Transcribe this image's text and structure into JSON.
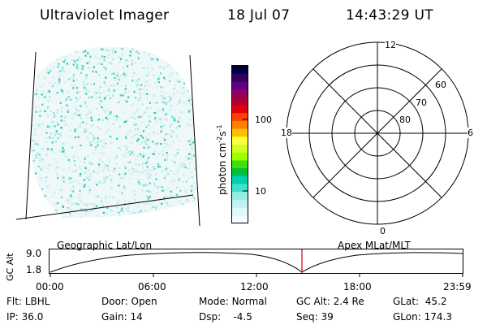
{
  "header": {
    "title": "Ultraviolet Imager",
    "date": "18 Jul 07",
    "time": "14:43:29 UT"
  },
  "colorbar": {
    "unit_label": "photon cm",
    "unit_exp1": "-2",
    "unit_mid": "s",
    "unit_exp2": "-1",
    "ticks": [
      "100",
      "10"
    ],
    "colors": [
      "#000040",
      "#300060",
      "#600080",
      "#900060",
      "#b00030",
      "#e00010",
      "#ff4000",
      "#ff8000",
      "#ffc000",
      "#ffff40",
      "#d0ff20",
      "#a0ff00",
      "#40e000",
      "#00c040",
      "#00d0b0",
      "#40e0d0",
      "#90f0e8",
      "#c0f0f0",
      "#e0f8f8",
      "#f4fcfc"
    ]
  },
  "polar": {
    "mlt_labels": {
      "top": "12",
      "left": "18",
      "right": "6",
      "bottom": "0"
    },
    "lat_labels": [
      "60",
      "70",
      "80"
    ]
  },
  "strip": {
    "left_label": "Geographic Lat/Lon",
    "right_label": "Apex MLat/MLT",
    "y_axis_label": "GC Alt",
    "y_ticks": [
      "9.0",
      "1.8"
    ],
    "x_ticks": [
      "00:00",
      "06:00",
      "12:00",
      "18:00",
      "23:59"
    ],
    "marker_color": "#d00000"
  },
  "info": {
    "flt": {
      "label": "Flt:",
      "value": "LBHL"
    },
    "ip": {
      "label": "IP:",
      "value": "36.0"
    },
    "door": {
      "label": "Door:",
      "value": "Open"
    },
    "gain": {
      "label": "Gain:",
      "value": "14"
    },
    "mode": {
      "label": "Mode:",
      "value": "Normal"
    },
    "dsp": {
      "label": "Dsp:",
      "value": "-4.5"
    },
    "gcalt": {
      "label": "GC Alt:",
      "value": "2.4 Re"
    },
    "seq": {
      "label": "Seq:",
      "value": "39"
    },
    "glat": {
      "label": "GLat:",
      "value": "45.2"
    },
    "glon": {
      "label": "GLon:",
      "value": "174.3"
    }
  },
  "image_colors": [
    "#c8ecec",
    "#a8e6e4",
    "#7ad8d2",
    "#40d0c0",
    "#20c8a8"
  ]
}
